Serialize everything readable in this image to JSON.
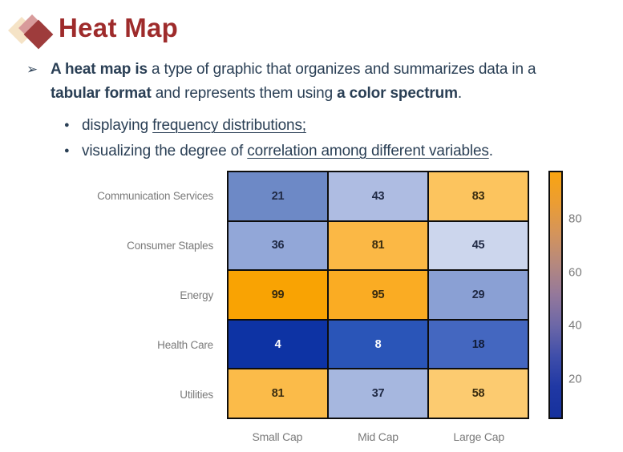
{
  "slide": {
    "title": "Heat Map",
    "title_color": "#9E2B2B",
    "body_text_color": "#2A3F55",
    "logo_colors": {
      "back": "#F5E3C6",
      "middle": "#D89B9B",
      "front": "#9E3C3C"
    },
    "bullet_marker": "➢",
    "sub_bullet_marker": "●",
    "bullet1_runs": [
      {
        "text": "A heat map is ",
        "bold": true
      },
      {
        "text": "a type of graphic that organizes and summarizes data in a"
      },
      {
        "br": true
      },
      {
        "text": "tabular format",
        "bold": true
      },
      {
        "text": " and represents them using "
      },
      {
        "text": "a color spectrum",
        "bold": true
      },
      {
        "text": "."
      }
    ],
    "sub_bullets": [
      {
        "runs": [
          {
            "text": "displaying "
          },
          {
            "text": "frequency distributions;",
            "underline": true
          }
        ]
      },
      {
        "runs": [
          {
            "text": "visualizing the degree of "
          },
          {
            "text": "correlation among different variables",
            "underline": true
          },
          {
            "text": "."
          }
        ]
      }
    ]
  },
  "chart_data": {
    "type": "heatmap",
    "title": "",
    "xlabel": "",
    "ylabel": "",
    "rows": [
      "Communication Services",
      "Consumer Staples",
      "Energy",
      "Health Care",
      "Utilities"
    ],
    "columns": [
      "Small Cap",
      "Mid Cap",
      "Large Cap"
    ],
    "values": [
      [
        21,
        43,
        83
      ],
      [
        36,
        81,
        45
      ],
      [
        99,
        95,
        29
      ],
      [
        4,
        8,
        18
      ],
      [
        81,
        37,
        58
      ]
    ],
    "cell_colors": [
      [
        "#6D89C6",
        "#AEBCE2",
        "#FCC45E"
      ],
      [
        "#92A7D8",
        "#FBB845",
        "#CCD6ED"
      ],
      [
        "#F9A303",
        "#FAAC23",
        "#8AA0D4"
      ],
      [
        "#0D33A4",
        "#2A55B8",
        "#4467C0"
      ],
      [
        "#FBBB49",
        "#A6B7DF",
        "#FCCB70"
      ]
    ],
    "value_text_colors": [
      [
        "#202a45",
        "#202a45",
        "#3a2c10"
      ],
      [
        "#202a45",
        "#3a2c10",
        "#202a45"
      ],
      [
        "#3a2c10",
        "#3a2c10",
        "#202a45"
      ],
      [
        "#ffffff",
        "#ffffff",
        "#111c38"
      ],
      [
        "#3a2c10",
        "#202a45",
        "#3a2c10"
      ]
    ],
    "label_color": "#7A7A7A",
    "grid_line_color": "#0D0D0D",
    "legend_position": "right",
    "colorbar": {
      "ticks": [
        80,
        60,
        40,
        20
      ],
      "scale_min": 5,
      "scale_max": 98,
      "gradient_top_to_bottom": [
        "#F9A411",
        "#EB9D33",
        "#D4945B",
        "#B5887E",
        "#94789B",
        "#6C67A7",
        "#3F4EAA",
        "#2038A4",
        "#16319D"
      ]
    }
  }
}
